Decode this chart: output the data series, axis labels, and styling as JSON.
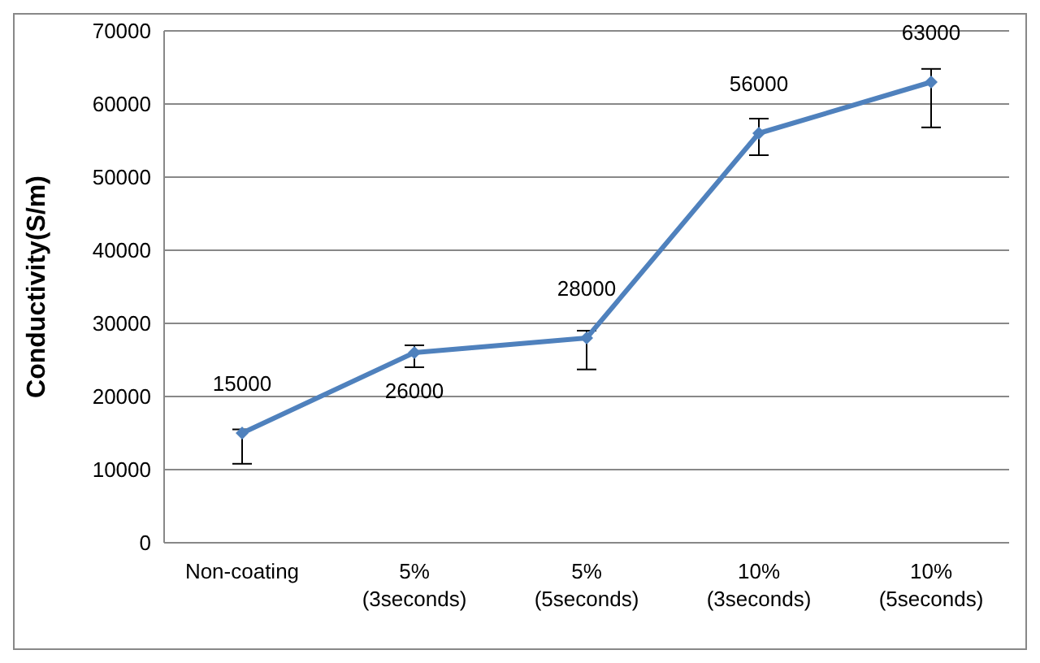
{
  "chart_data": {
    "type": "line",
    "ylabel": "Conductivity(S/m)",
    "categories": [
      "Non-coating",
      "5%\n(3seconds)",
      "5%\n(5seconds)",
      "10%\n(3seconds)",
      "10%\n(5seconds)"
    ],
    "series": [
      {
        "color": "#4f81bd",
        "values": [
          15000,
          26000,
          28000,
          56000,
          63000
        ],
        "errors": [
          [
            10800,
            15500
          ],
          [
            24000,
            27000
          ],
          [
            23700,
            29000
          ],
          [
            53000,
            58000
          ],
          [
            56800,
            64800
          ]
        ],
        "value_labels": [
          "15000",
          "26000",
          "28000",
          "56000",
          "63000"
        ]
      }
    ],
    "ylim": [
      0,
      70000
    ],
    "yticks": [
      0,
      10000,
      20000,
      30000,
      40000,
      50000,
      60000,
      70000
    ],
    "grid": "y",
    "legend": false,
    "marker": "diamond",
    "line_style": "solid"
  }
}
